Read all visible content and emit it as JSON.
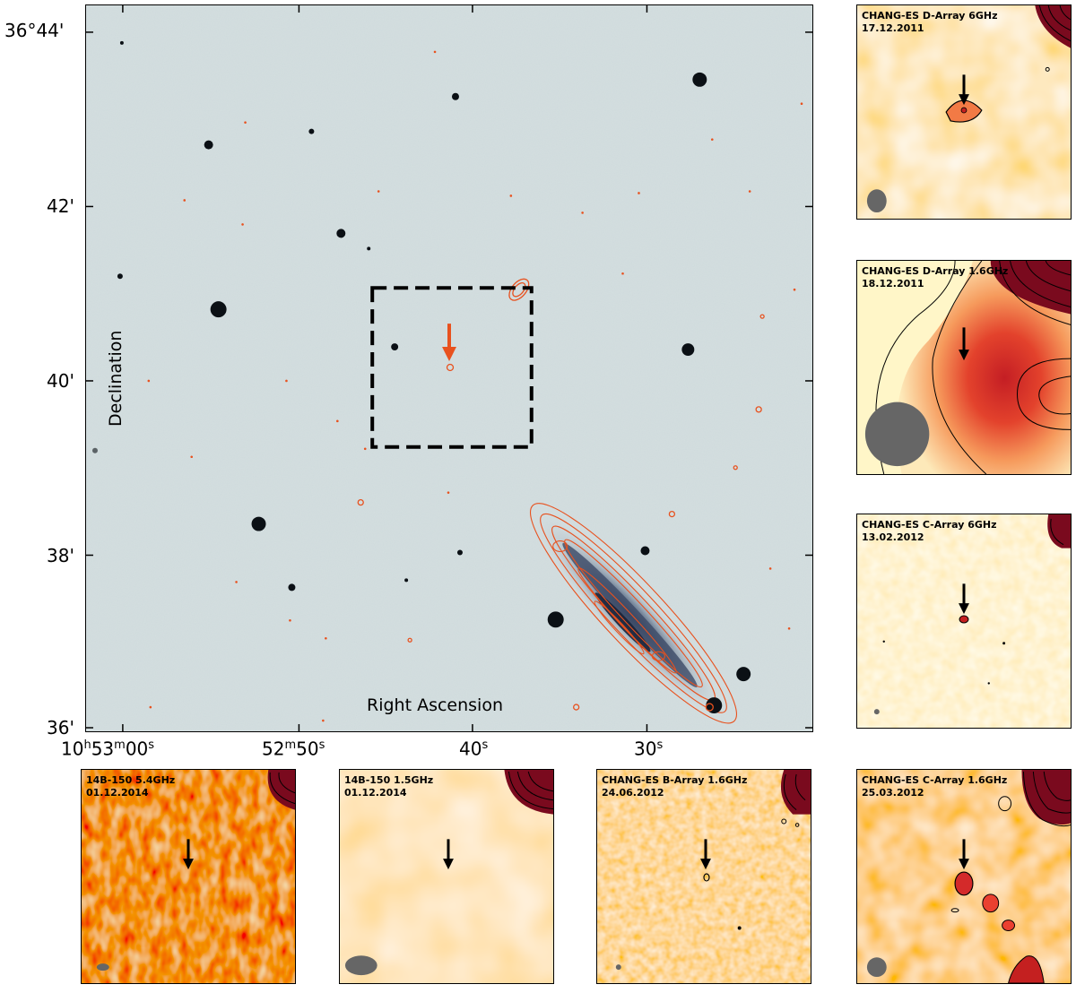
{
  "main": {
    "dec_ticks": [
      "36°44'",
      "42'",
      "40'",
      "38'",
      "36'"
    ],
    "ra_tick_first": {
      "h": "10",
      "hs": "h",
      "m": "53",
      "ms": "m",
      "s": "00",
      "ss": "s"
    },
    "ra_tick_second": {
      "m": "52",
      "ms": "m",
      "s": "50",
      "ss": "s"
    },
    "ra_tick_third": {
      "s": "40",
      "ss": "s"
    },
    "ra_tick_fourth": {
      "s": "30",
      "ss": "s"
    },
    "xlabel": "Right Ascension",
    "ylabel": "Declination",
    "colors": {
      "background": "#d4dfe0",
      "contour": "#e8511e",
      "stars": "#0b1015",
      "box": "#000000"
    }
  },
  "panels": [
    {
      "id": "p1",
      "title": "CHANG-ES D-Array 6GHz",
      "date": "17.12.2011"
    },
    {
      "id": "p2",
      "title": "CHANG-ES D-Array 1.6GHz",
      "date": "18.12.2011"
    },
    {
      "id": "p3",
      "title": "CHANG-ES C-Array 6GHz",
      "date": "13.02.2012"
    },
    {
      "id": "p4",
      "title": "14B-150 5.4GHz",
      "date": "01.12.2014"
    },
    {
      "id": "p5",
      "title": "14B-150 1.5GHz",
      "date": "01.12.2014"
    },
    {
      "id": "p6",
      "title": "CHANG-ES B-Array 1.6GHz",
      "date": "24.06.2012"
    },
    {
      "id": "p7",
      "title": "CHANG-ES C-Array 1.6GHz",
      "date": "25.03.2012"
    }
  ]
}
